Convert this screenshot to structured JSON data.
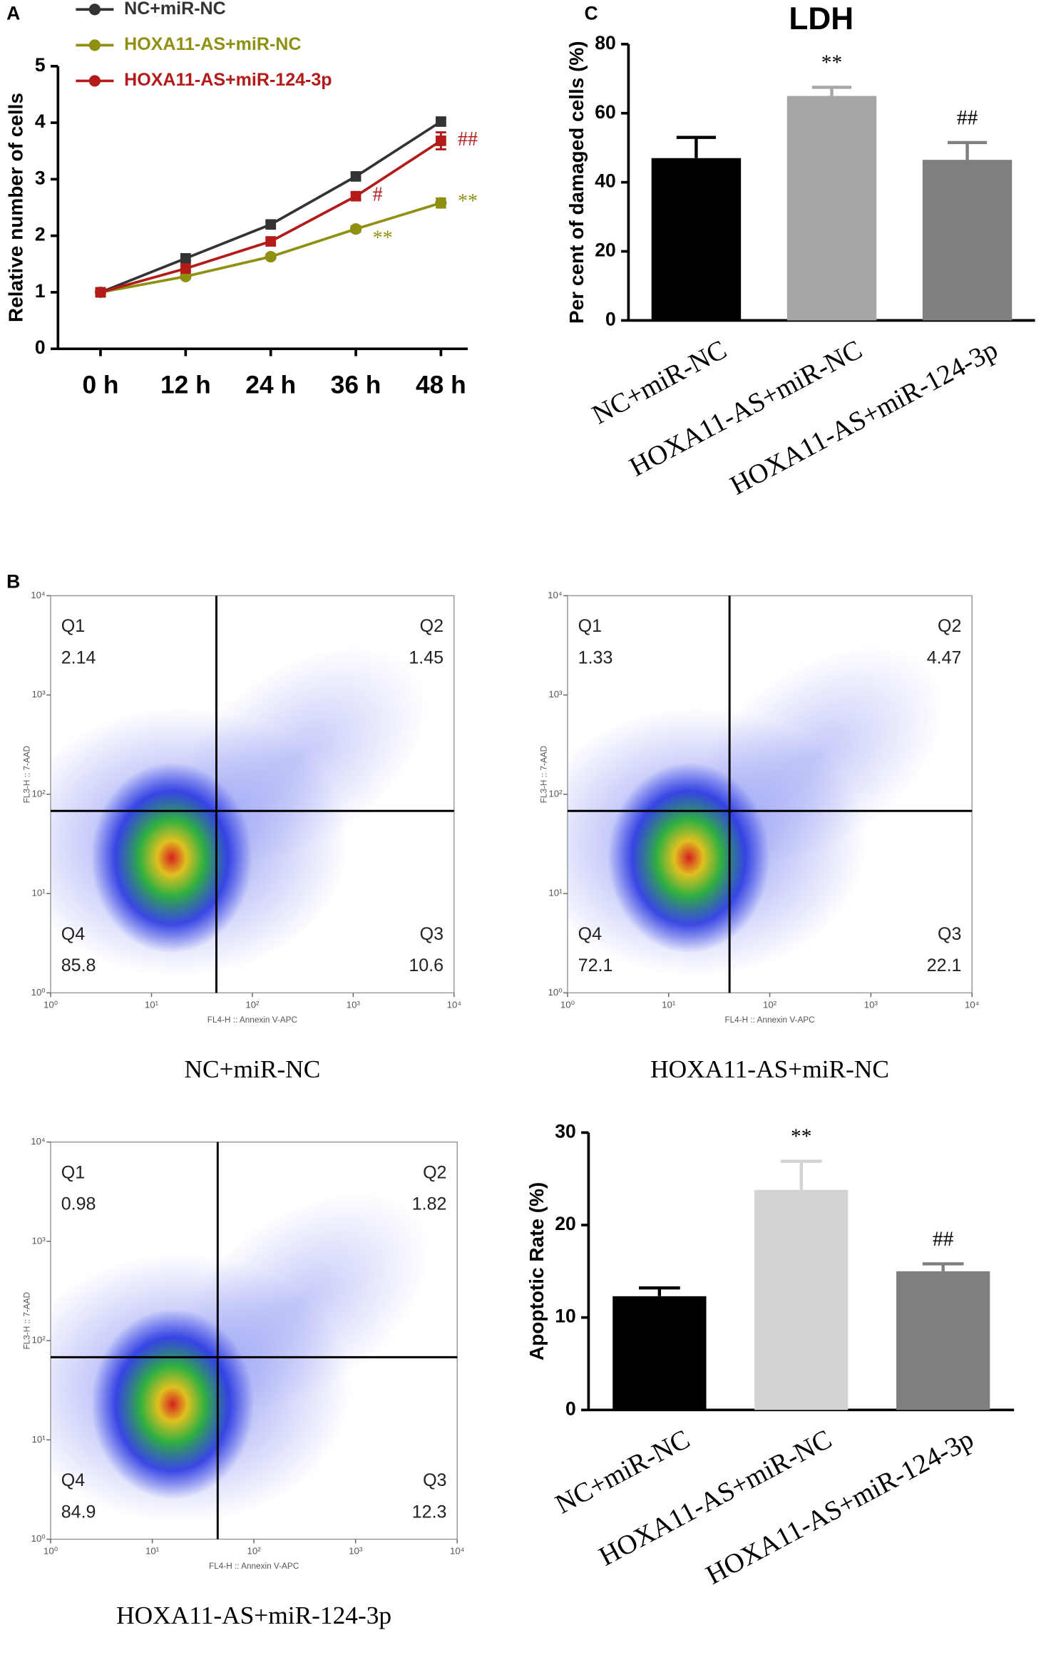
{
  "chart_data": [
    {
      "type": "line",
      "panel": "A",
      "ylabel": "Relative number of cells",
      "categories": [
        "0 h",
        "12 h",
        "24 h",
        "36 h",
        "48 h"
      ],
      "ylim": [
        0,
        5
      ],
      "yticks": [
        0,
        1,
        2,
        3,
        4,
        5
      ],
      "series": [
        {
          "name": "NC+miR-NC",
          "color": "#333333",
          "marker": "square",
          "values": [
            1,
            1.6,
            2.2,
            3.05,
            4.02
          ],
          "errors": [
            0.02,
            0.04,
            0.04,
            0.05,
            0.05
          ],
          "annotations": [
            null,
            null,
            null,
            null,
            null
          ]
        },
        {
          "name": "HOXA11-AS+miR-NC",
          "color": "#8f8f12",
          "marker": "circle",
          "values": [
            1,
            1.28,
            1.63,
            2.12,
            2.58
          ],
          "errors": [
            0.02,
            0.04,
            0.04,
            0.05,
            0.08
          ],
          "annotations": [
            null,
            null,
            null,
            "**",
            "**"
          ]
        },
        {
          "name": "HOXA11-AS+miR-124-3p",
          "color": "#b31b1b",
          "marker": "square",
          "values": [
            1,
            1.42,
            1.9,
            2.7,
            3.68
          ],
          "errors": [
            0.02,
            0.04,
            0.04,
            0.06,
            0.15
          ],
          "annotations": [
            null,
            null,
            null,
            "#",
            "##"
          ]
        }
      ]
    },
    {
      "type": "bar",
      "panel": "C",
      "title": "LDH",
      "ylabel": "Per cent of damaged cells (%)",
      "categories": [
        "NC+miR-NC",
        "HOXA11-AS+miR-NC",
        "HOXA11-AS+miR-124-3p"
      ],
      "values": [
        47,
        65,
        46.5
      ],
      "errors": [
        6,
        2.5,
        5
      ],
      "annotations": [
        null,
        "**",
        "##"
      ],
      "colors": [
        "#000000",
        "#a6a6a6",
        "#7f7f7f"
      ],
      "ylim": [
        0,
        80
      ],
      "yticks": [
        0,
        20,
        40,
        60,
        80
      ]
    },
    {
      "type": "flow",
      "panel": "B",
      "caption": "NC+miR-NC",
      "xlabel": "FL4-H :: Annexin V-APC",
      "ylabel": "FL3-H :: 7-AAD",
      "xlim": [
        1,
        10000
      ],
      "ylim": [
        1,
        10000
      ],
      "xticks": [
        {
          "value": 1,
          "label": "10⁰"
        },
        {
          "value": 10,
          "label": "10¹"
        },
        {
          "value": 100,
          "label": "10²"
        },
        {
          "value": 1000,
          "label": "10³"
        },
        {
          "value": 10000,
          "label": "10⁴"
        }
      ],
      "yticks": [
        {
          "value": 1,
          "label": "10⁰"
        },
        {
          "value": 10,
          "label": "10¹"
        },
        {
          "value": 100,
          "label": "10²"
        },
        {
          "value": 1000,
          "label": "10³"
        },
        {
          "value": 10000,
          "label": "10⁴"
        }
      ],
      "log_scale": true,
      "gate": [
        44,
        68
      ],
      "quadrants": [
        {
          "name": "Q1",
          "value": 2.14
        },
        {
          "name": "Q2",
          "value": 1.45
        },
        {
          "name": "Q3",
          "value": 10.6
        },
        {
          "name": "Q4",
          "value": 85.8
        }
      ]
    },
    {
      "type": "flow",
      "caption": "HOXA11-AS+miR-NC",
      "xlabel": "FL4-H :: Annexin V-APC",
      "ylabel": "FL3-H :: 7-AAD",
      "xlim": [
        1,
        10000
      ],
      "ylim": [
        1,
        10000
      ],
      "xticks": [
        {
          "value": 1,
          "label": "10⁰"
        },
        {
          "value": 10,
          "label": "10¹"
        },
        {
          "value": 100,
          "label": "10²"
        },
        {
          "value": 1000,
          "label": "10³"
        },
        {
          "value": 10000,
          "label": "10⁴"
        }
      ],
      "yticks": [
        {
          "value": 1,
          "label": "10⁰"
        },
        {
          "value": 10,
          "label": "10¹"
        },
        {
          "value": 100,
          "label": "10²"
        },
        {
          "value": 1000,
          "label": "10³"
        },
        {
          "value": 10000,
          "label": "10⁴"
        }
      ],
      "log_scale": true,
      "gate": [
        40,
        68
      ],
      "quadrants": [
        {
          "name": "Q1",
          "value": 1.33
        },
        {
          "name": "Q2",
          "value": 4.47
        },
        {
          "name": "Q3",
          "value": 22.1
        },
        {
          "name": "Q4",
          "value": 72.1
        }
      ]
    },
    {
      "type": "flow",
      "caption": "HOXA11-AS+miR-124-3p",
      "xlabel": "FL4-H :: Annexin V-APC",
      "ylabel": "FL3-H :: 7-AAD",
      "xlim": [
        1,
        10000
      ],
      "ylim": [
        1,
        10000
      ],
      "xticks": [
        {
          "value": 1,
          "label": "10⁰"
        },
        {
          "value": 10,
          "label": "10¹"
        },
        {
          "value": 100,
          "label": "10²"
        },
        {
          "value": 1000,
          "label": "10³"
        },
        {
          "value": 10000,
          "label": "10⁴"
        }
      ],
      "yticks": [
        {
          "value": 1,
          "label": "10⁰"
        },
        {
          "value": 10,
          "label": "10¹"
        },
        {
          "value": 100,
          "label": "10²"
        },
        {
          "value": 1000,
          "label": "10³"
        },
        {
          "value": 10000,
          "label": "10⁴"
        }
      ],
      "log_scale": true,
      "gate": [
        44,
        68
      ],
      "quadrants": [
        {
          "name": "Q1",
          "value": 0.98
        },
        {
          "name": "Q2",
          "value": 1.82
        },
        {
          "name": "Q3",
          "value": 12.3
        },
        {
          "name": "Q4",
          "value": 84.9
        }
      ]
    },
    {
      "type": "bar",
      "ylabel": "Apoptotic Rate (%)",
      "categories": [
        "NC+miR-NC",
        "HOXA11-AS+miR-NC",
        "HOXA11-AS+miR-124-3p"
      ],
      "values": [
        12.3,
        23.8,
        15
      ],
      "errors": [
        0.9,
        3.1,
        0.8
      ],
      "annotations": [
        null,
        "**",
        "##"
      ],
      "colors": [
        "#000000",
        "#d3d3d3",
        "#7f7f7f"
      ],
      "ylim": [
        0,
        30
      ],
      "yticks": [
        0,
        10,
        20,
        30
      ]
    }
  ]
}
